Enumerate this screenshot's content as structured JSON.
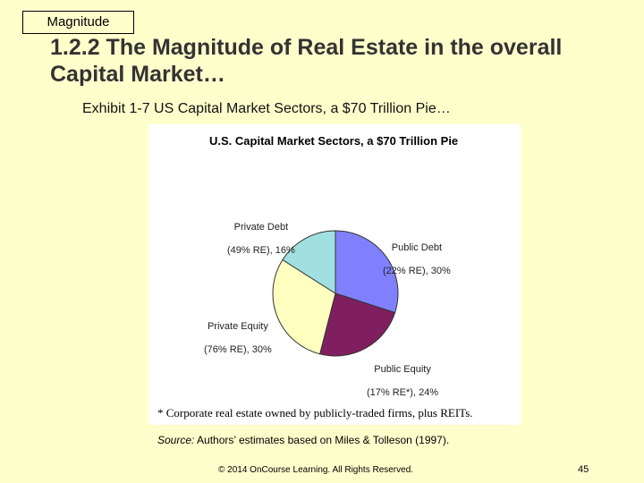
{
  "slide": {
    "tag": "Magnitude",
    "title": "1.2.2 The Magnitude of Real Estate in the overall Capital Market…",
    "subtitle": "Exhibit 1-7 US Capital Market Sectors, a $70 Trillion Pie…",
    "footnote": "* Corporate real estate owned by publicly-traded firms, plus REITs.",
    "source_label": "Source:",
    "source_text": " Authors’ estimates based on Miles & Tolleson (1997).",
    "copyright": "© 2014 OnCourse Learning. All Rights Reserved.",
    "page_number": "45"
  },
  "chart_data": {
    "type": "pie",
    "title": "U.S. Capital Market Sectors, a $70 Trillion Pie",
    "slices": [
      {
        "name": "Public Debt",
        "re_note": "(22% RE), 30%",
        "value": 30,
        "color": "#8080ff"
      },
      {
        "name": "Public Equity",
        "re_note": "(17% RE*), 24%",
        "value": 24,
        "color": "#7f1f5f"
      },
      {
        "name": "Private Equity",
        "re_note": "(76% RE), 30%",
        "value": 30,
        "color": "#ffffc0"
      },
      {
        "name": "Private Debt",
        "re_note": "(49% RE), 16%",
        "value": 16,
        "color": "#a0e0e0"
      }
    ],
    "start_angle_deg": 0,
    "direction": "clockwise"
  }
}
